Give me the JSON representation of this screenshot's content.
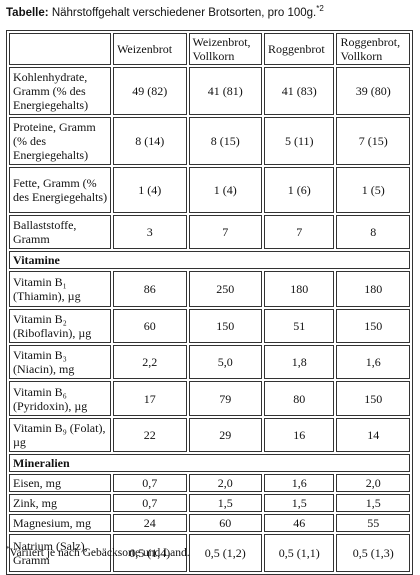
{
  "title": {
    "label": "Tabelle:",
    "text": "Nährstoffgehalt verschiedener Brotsorten, pro 100g.",
    "note": "*2"
  },
  "table": {
    "header": [
      "Weizenbrot",
      "Weizenbrot, Vollkorn",
      "Roggenbrot",
      "Roggenbrot, Vollkorn"
    ],
    "rows": [
      {
        "label": "Kohlenhydrate, Gramm (% des Energiegehalts)",
        "values": [
          "49 (82)",
          "41 (81)",
          "41 (83)",
          "39 (80)"
        ]
      },
      {
        "label": "Proteine, Gramm (% des Energiegehalts)",
        "values": [
          "8 (14)",
          "8 (15)",
          "5 (11)",
          "7 (15)"
        ]
      },
      {
        "label": "Fette, Gramm (% des Energiegehalts)",
        "values": [
          "1 (4)",
          "1 (4)",
          "1 (6)",
          "1 (5)"
        ]
      },
      {
        "label": "Ballaststoffe, Gramm",
        "values": [
          "3",
          "7",
          "7",
          "8"
        ]
      },
      {
        "section": "Vitamine"
      },
      {
        "label": "Vitamin B₁ (Thiamin), µg",
        "values": [
          "86",
          "250",
          "180",
          "180"
        ]
      },
      {
        "label": "Vitamin B₂ (Riboflavin), µg",
        "values": [
          "60",
          "150",
          "51",
          "150"
        ]
      },
      {
        "label": "Vitamin B₃ (Niacin), mg",
        "values": [
          "2,2",
          "5,0",
          "1,8",
          "1,6"
        ]
      },
      {
        "label": "Vitamin B₆ (Pyridoxin), µg",
        "values": [
          "17",
          "79",
          "80",
          "150"
        ]
      },
      {
        "label": "Vitamin B₉ (Folat), µg",
        "values": [
          "22",
          "29",
          "16",
          "14"
        ]
      },
      {
        "section": "Mineralien"
      },
      {
        "label": "Eisen, mg",
        "values": [
          "0,7",
          "2,0",
          "1,6",
          "2,0"
        ]
      },
      {
        "label": "Zink, mg",
        "values": [
          "0,7",
          "1,5",
          "1,5",
          "1,5"
        ]
      },
      {
        "label": "Magnesium, mg",
        "values": [
          "24",
          "60",
          "46",
          "55"
        ]
      },
      {
        "label": "Natrium (Salz), Gramm",
        "values": [
          "0,5 (1,4)",
          "0,5 (1,2)",
          "0,5 (1,1)",
          "0,5 (1,3)"
        ]
      }
    ]
  },
  "footnote": {
    "mark": "*",
    "text": "Variiert je nach Gebäcksorte und Land."
  }
}
